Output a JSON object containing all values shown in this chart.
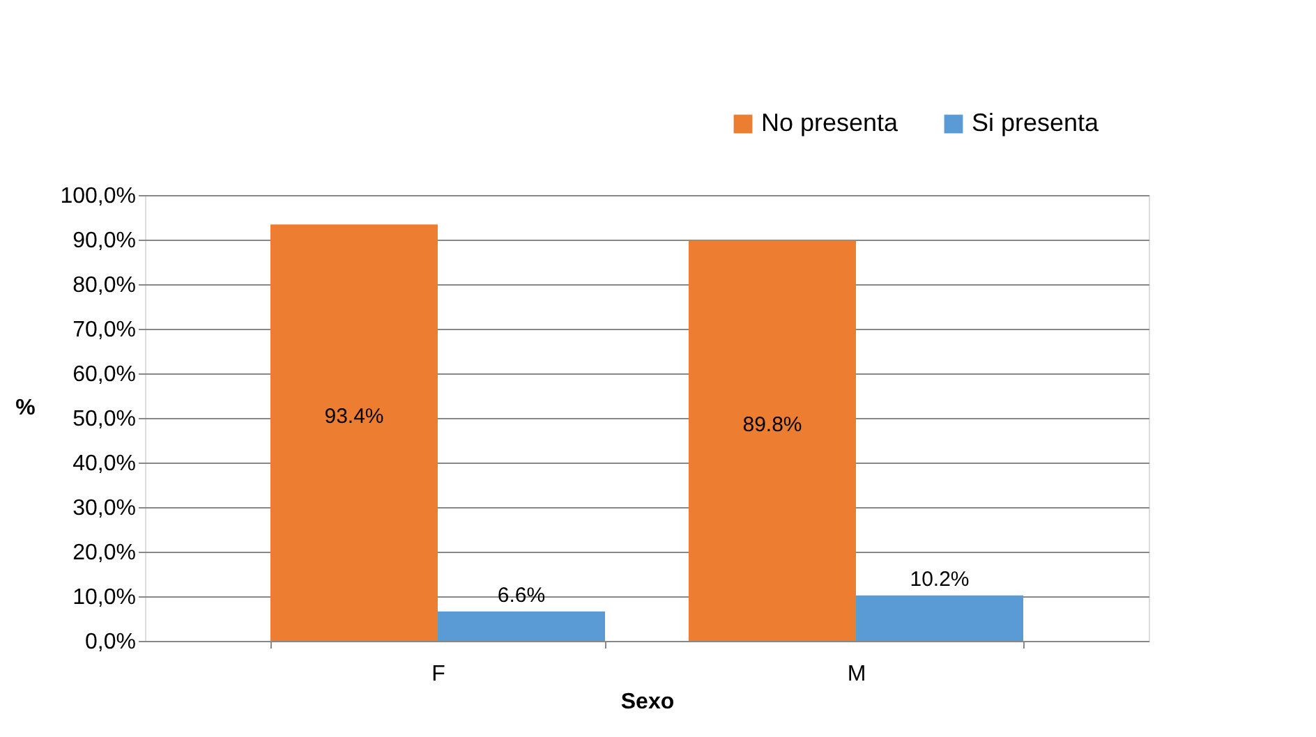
{
  "chart_data": {
    "type": "bar",
    "xlabel": "Sexo",
    "ylabel": "%",
    "categories": [
      "F",
      "M"
    ],
    "series": [
      {
        "name": "No presenta",
        "color": "#ed7d31",
        "values": [
          93.4,
          89.8
        ],
        "value_labels": [
          "93.4%",
          "89.8%"
        ]
      },
      {
        "name": "Si presenta",
        "color": "#5b9bd5",
        "values": [
          6.6,
          10.2
        ],
        "value_labels": [
          "6.6%",
          "10.2%"
        ]
      }
    ],
    "ylim": [
      0,
      100
    ],
    "yticks": [
      {
        "value": 0,
        "label": "0,0%"
      },
      {
        "value": 10,
        "label": "10,0%"
      },
      {
        "value": 20,
        "label": "20,0%"
      },
      {
        "value": 30,
        "label": "30,0%"
      },
      {
        "value": 40,
        "label": "40,0%"
      },
      {
        "value": 50,
        "label": "50,0%"
      },
      {
        "value": 60,
        "label": "60,0%"
      },
      {
        "value": 70,
        "label": "70,0%"
      },
      {
        "value": 80,
        "label": "80,0%"
      },
      {
        "value": 90,
        "label": "90,0%"
      },
      {
        "value": 100,
        "label": "100,0%"
      }
    ],
    "grid": "y",
    "legend": "top right"
  }
}
